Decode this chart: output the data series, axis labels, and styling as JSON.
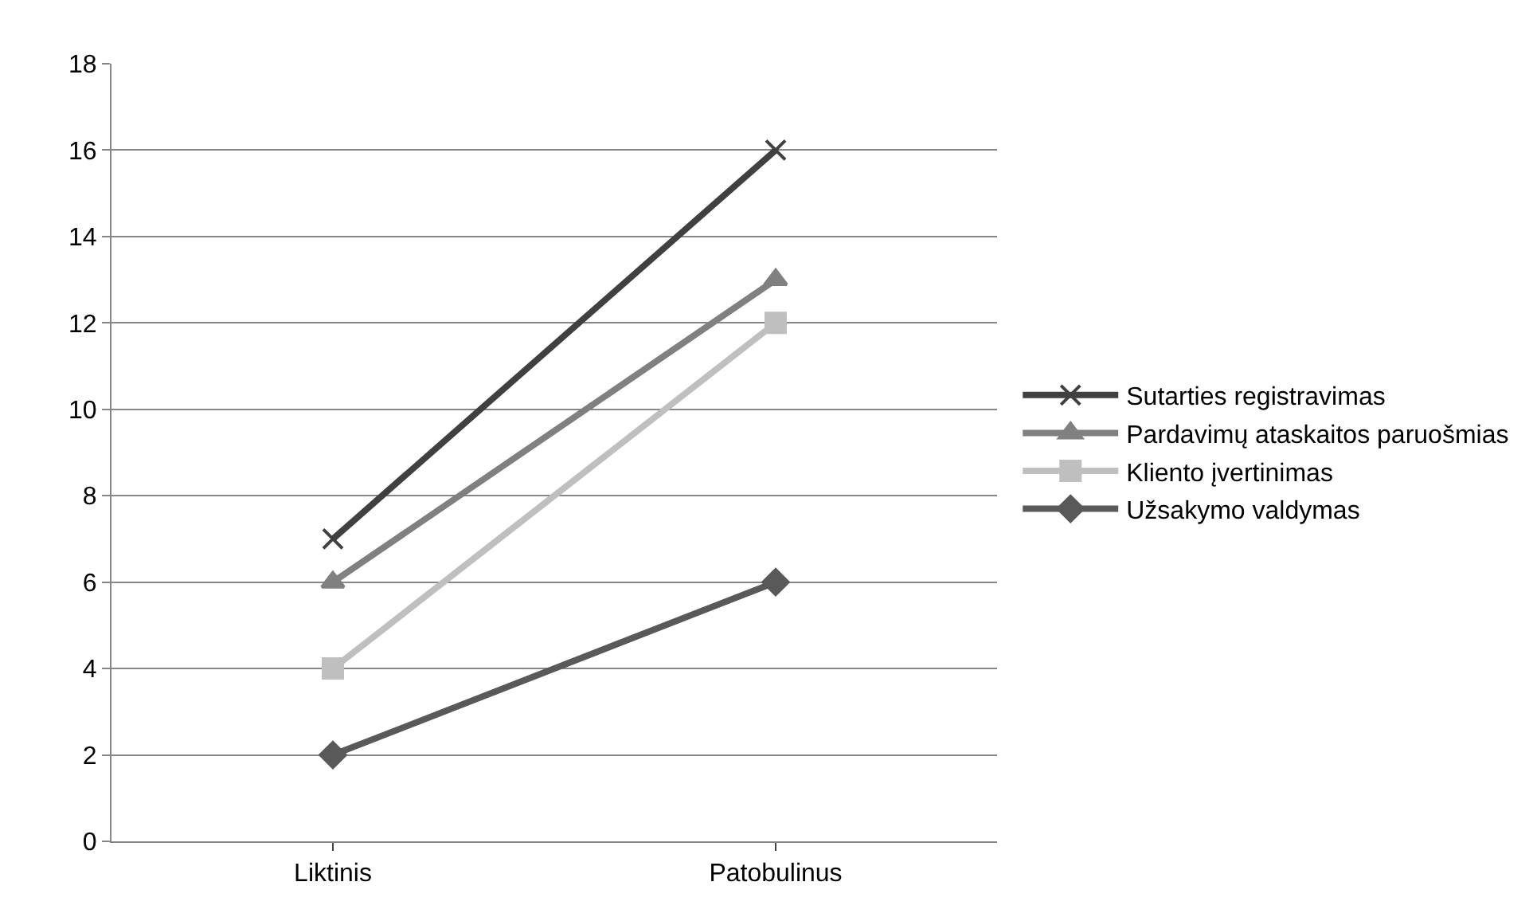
{
  "chart_data": {
    "type": "line",
    "categories": [
      "Liktinis",
      "Patobulinus"
    ],
    "series": [
      {
        "name": "Sutarties registravimas",
        "color": "#404040",
        "marker": "cross",
        "values": [
          7,
          16
        ]
      },
      {
        "name": "Pardavimų ataskaitos paruošmias",
        "color": "#808080",
        "marker": "triangle",
        "values": [
          6,
          13
        ]
      },
      {
        "name": "Kliento įvertinimas",
        "color": "#bfbfbf",
        "marker": "square",
        "values": [
          4,
          12
        ]
      },
      {
        "name": "Užsakymo valdymas",
        "color": "#595959",
        "marker": "diamond",
        "values": [
          2,
          6
        ]
      }
    ],
    "ylim": [
      0,
      18
    ],
    "yticks": [
      0,
      2,
      4,
      6,
      8,
      10,
      12,
      14,
      16,
      18
    ],
    "grid": "y",
    "legend": "right",
    "line_style": "solid"
  }
}
